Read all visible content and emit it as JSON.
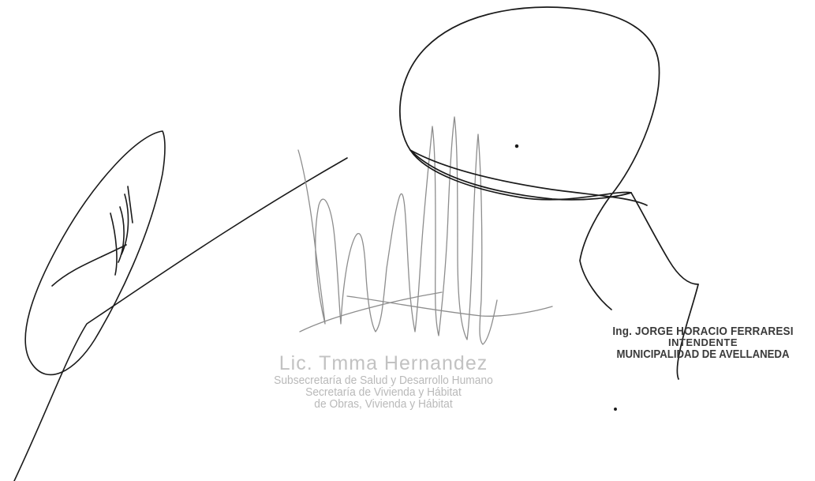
{
  "stamp_center": {
    "name": "Lic. Tmma Hernandez",
    "line1": "Subsecretaría de Salud y Desarrollo Humano",
    "line2": "Secretaría de Vivienda y Hábitat",
    "line3": "de Obras, Vivienda y Hábitat"
  },
  "stamp_right": {
    "name": "Ing. JORGE HORACIO FERRARESI",
    "role": "INTENDENTE",
    "org": "MUNICIPALIDAD DE AVELLANEDA"
  },
  "colors": {
    "ink_dark": "#1a1a1a",
    "ink_faded": "#9a9a9a",
    "stamp_faded": "#b9b9b9",
    "stamp_dark": "#3a3a3a"
  }
}
